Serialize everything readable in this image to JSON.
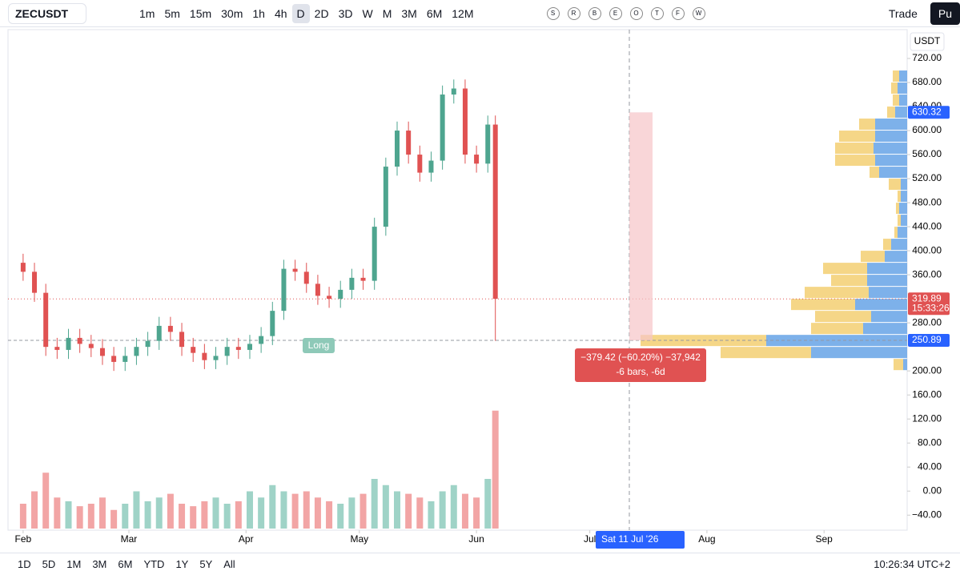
{
  "toolbar": {
    "symbol": "ZECUSDT",
    "intervals": [
      "1m",
      "5m",
      "15m",
      "30m",
      "1h",
      "4h",
      "D",
      "2D",
      "3D",
      "W",
      "M",
      "3M",
      "6M",
      "12M"
    ],
    "letters": [
      "S",
      "R",
      "B",
      "E",
      "O",
      "T",
      "F",
      "W"
    ],
    "trade": "Trade",
    "publish": "Pu"
  },
  "chart_data": {
    "type": "candlestick",
    "currency": "USDT",
    "x": [
      0,
      3,
      6,
      9,
      12,
      15,
      18,
      21,
      24,
      27,
      30,
      33,
      36,
      39,
      42,
      45,
      48,
      51,
      54,
      57,
      60,
      63,
      66,
      69,
      72,
      75,
      78,
      81,
      84,
      87,
      90,
      93,
      96,
      99,
      102,
      105,
      108,
      111,
      114,
      117,
      120,
      123,
      125
    ],
    "open": [
      380,
      365,
      330,
      240,
      235,
      255,
      245,
      238,
      225,
      215,
      225,
      240,
      250,
      275,
      265,
      240,
      230,
      218,
      225,
      240,
      235,
      245,
      258,
      300,
      370,
      365,
      345,
      325,
      320,
      335,
      355,
      350,
      440,
      540,
      600,
      560,
      530,
      550,
      660,
      670,
      560,
      545,
      610
    ],
    "high": [
      395,
      380,
      345,
      255,
      270,
      270,
      260,
      253,
      240,
      240,
      255,
      265,
      290,
      290,
      280,
      255,
      245,
      240,
      255,
      255,
      260,
      273,
      315,
      385,
      385,
      380,
      360,
      340,
      350,
      370,
      370,
      455,
      555,
      615,
      615,
      575,
      565,
      675,
      685,
      685,
      575,
      625,
      625
    ],
    "low": [
      350,
      315,
      225,
      220,
      220,
      230,
      223,
      210,
      200,
      200,
      210,
      225,
      235,
      250,
      225,
      215,
      203,
      203,
      210,
      220,
      220,
      230,
      243,
      285,
      350,
      330,
      310,
      305,
      305,
      320,
      335,
      335,
      425,
      525,
      545,
      515,
      515,
      535,
      645,
      545,
      530,
      530,
      250
    ],
    "close": [
      365,
      330,
      240,
      235,
      255,
      245,
      238,
      225,
      215,
      225,
      240,
      250,
      275,
      265,
      240,
      230,
      218,
      225,
      240,
      235,
      245,
      258,
      300,
      370,
      365,
      345,
      325,
      320,
      335,
      355,
      350,
      440,
      540,
      600,
      560,
      530,
      550,
      660,
      670,
      560,
      545,
      610,
      320
    ],
    "volume": [
      20,
      30,
      45,
      25,
      22,
      18,
      20,
      25,
      15,
      20,
      30,
      22,
      25,
      28,
      20,
      18,
      22,
      25,
      20,
      22,
      30,
      25,
      35,
      30,
      28,
      30,
      25,
      22,
      20,
      25,
      28,
      40,
      35,
      30,
      28,
      25,
      22,
      30,
      35,
      28,
      25,
      40,
      95
    ],
    "vlim": [
      0,
      100
    ],
    "up_color": "#4ea58f",
    "down_color": "#e05252",
    "up_volume_color": "#9fd3c7",
    "down_volume_color": "#f2a5a5",
    "xlim": [
      -4,
      234
    ],
    "ylim": [
      -65,
      768
    ],
    "xticks": [
      {
        "value": 0,
        "label": "Feb"
      },
      {
        "value": 28,
        "label": "Mar"
      },
      {
        "value": 59,
        "label": "Apr"
      },
      {
        "value": 89,
        "label": "May"
      },
      {
        "value": 120,
        "label": "Jun"
      },
      {
        "value": 150,
        "label": "Jul"
      },
      {
        "value": 181,
        "label": "Aug"
      },
      {
        "value": 212,
        "label": "Sep"
      }
    ],
    "yticks": [
      {
        "value": 720,
        "label": "720.00"
      },
      {
        "value": 680,
        "label": "680.00"
      },
      {
        "value": 640,
        "label": "640.00"
      },
      {
        "value": 600,
        "label": "600.00"
      },
      {
        "value": 560,
        "label": "560.00"
      },
      {
        "value": 520,
        "label": "520.00"
      },
      {
        "value": 480,
        "label": "480.00"
      },
      {
        "value": 440,
        "label": "440.00"
      },
      {
        "value": 400,
        "label": "400.00"
      },
      {
        "value": 360,
        "label": "360.00"
      },
      {
        "value": 280,
        "label": "280.00"
      },
      {
        "value": 200,
        "label": "200.00"
      },
      {
        "value": 160,
        "label": "160.00"
      },
      {
        "value": 120,
        "label": "120.00"
      },
      {
        "value": 80,
        "label": "80.00"
      },
      {
        "value": 40,
        "label": "40.00"
      },
      {
        "value": 0,
        "label": "0.00"
      },
      {
        "value": -40,
        "label": "−40.00"
      }
    ],
    "price_labels": {
      "high": 630.32,
      "last": 319.89,
      "countdown": "15:33:26",
      "low": 250.89
    },
    "volume_profile": {
      "prices": [
        690,
        670,
        650,
        630,
        610,
        590,
        570,
        550,
        530,
        510,
        490,
        470,
        450,
        430,
        410,
        390,
        370,
        350,
        330,
        310,
        290,
        270,
        250,
        230,
        210
      ],
      "buy": [
        10,
        12,
        10,
        15,
        40,
        40,
        42,
        40,
        35,
        8,
        8,
        10,
        8,
        12,
        20,
        28,
        50,
        50,
        48,
        65,
        45,
        55,
        176,
        120,
        5
      ],
      "sell": [
        8,
        8,
        8,
        10,
        20,
        45,
        48,
        50,
        12,
        15,
        4,
        4,
        4,
        4,
        10,
        30,
        55,
        45,
        80,
        80,
        70,
        65,
        157,
        113,
        12
      ],
      "buy_color": "#6fa8e8",
      "sell_color": "#f4d27a",
      "xlim": [
        0,
        340
      ]
    },
    "measure": {
      "line1": "−379.42 (−60.20%) −37,942",
      "line2": "-6 bars, -6d",
      "date": "Sat 11 Jul '26"
    },
    "position_label": "Long"
  },
  "footer": {
    "ranges": [
      "1D",
      "5D",
      "1M",
      "3M",
      "6M",
      "YTD",
      "1Y",
      "5Y",
      "All"
    ],
    "clock": "10:26:34 UTC+2"
  }
}
